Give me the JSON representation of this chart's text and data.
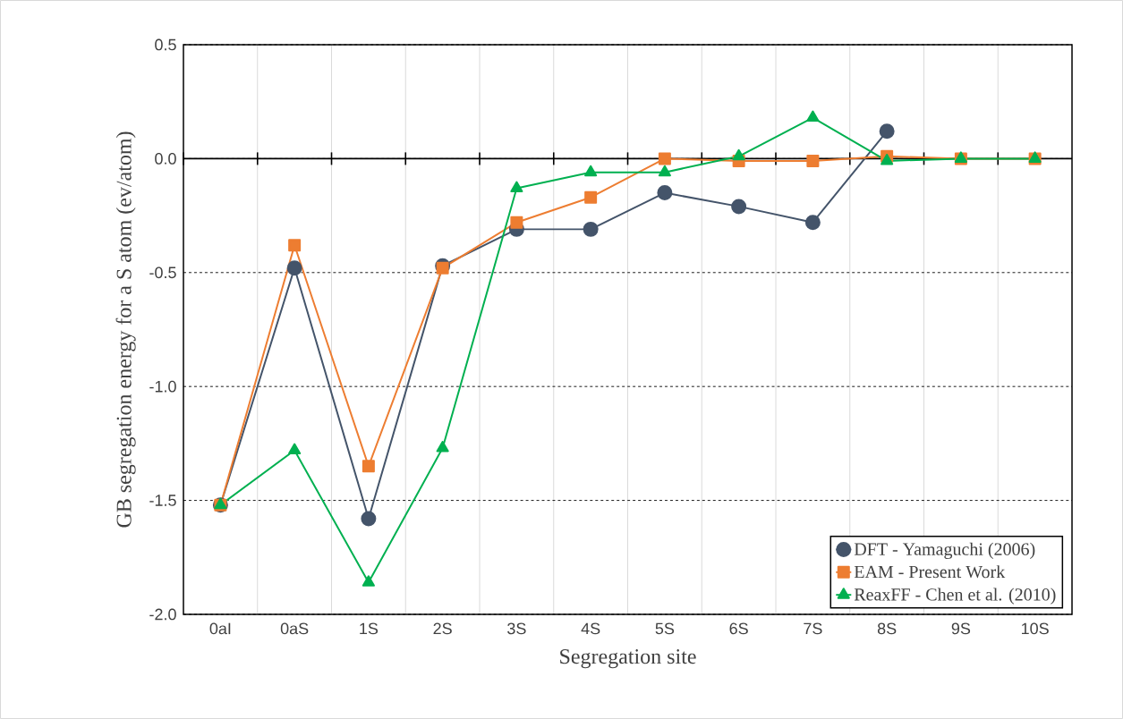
{
  "chart_data": {
    "type": "line",
    "xlabel": "Segregation site",
    "ylabel": "GB segregation energy for a S atom (ev/atom)",
    "categories": [
      "0aI",
      "0aS",
      "1S",
      "2S",
      "3S",
      "4S",
      "5S",
      "6S",
      "7S",
      "8S",
      "9S",
      "10S"
    ],
    "series": [
      {
        "name": "DFT - Yamaguchi (2006)",
        "color": "#44546a",
        "marker": "circle",
        "values": [
          -1.52,
          -0.48,
          -1.58,
          -0.47,
          -0.31,
          -0.31,
          -0.15,
          -0.21,
          -0.28,
          0.12,
          null,
          null
        ]
      },
      {
        "name": "EAM - Present Work",
        "color": "#ed7d31",
        "marker": "square",
        "values": [
          -1.52,
          -0.38,
          -1.35,
          -0.48,
          -0.28,
          -0.17,
          0.0,
          -0.01,
          -0.01,
          0.01,
          0.0,
          0.0
        ]
      },
      {
        "name": "ReaxFF - Chen et al. (2010)",
        "color": "#00b050",
        "marker": "triangle",
        "values": [
          -1.52,
          -1.28,
          -1.86,
          -1.27,
          -0.13,
          -0.06,
          -0.06,
          0.01,
          0.18,
          -0.01,
          0.0,
          0.0
        ]
      }
    ],
    "ylim": [
      -2.0,
      0.5
    ],
    "yticks": [
      {
        "value": -2.0,
        "label": "-2.0"
      },
      {
        "value": -1.5,
        "label": "-1.5"
      },
      {
        "value": -1.0,
        "label": "-1.0"
      },
      {
        "value": -0.5,
        "label": "-0.5"
      },
      {
        "value": 0.0,
        "label": "0.0"
      },
      {
        "value": 0.5,
        "label": "0.5"
      }
    ],
    "ref_lines": [
      {
        "axis": "y",
        "value": 0,
        "color": "#000000"
      }
    ],
    "grid": true,
    "legend": "bottom right",
    "line_style": "solid"
  }
}
